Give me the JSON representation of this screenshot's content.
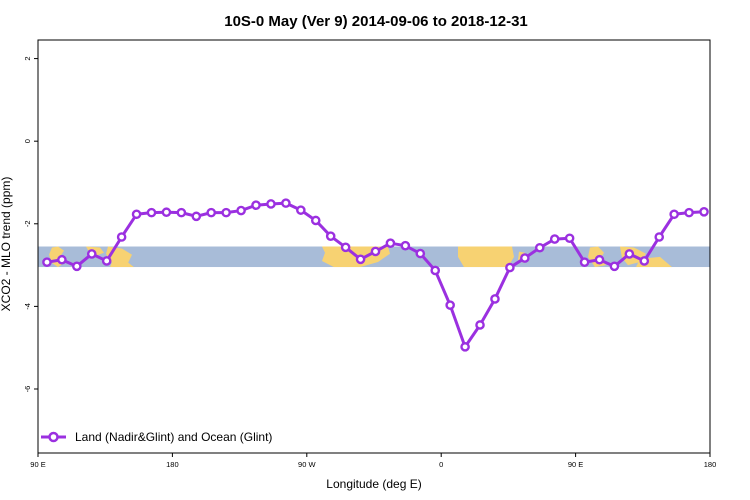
{
  "chart_data": {
    "type": "line",
    "title": "10S-0 May (Ver 9)   2014-09-06 to 2018-12-31",
    "xlabel": "Longitude (deg E)",
    "ylabel": "XCO2 - MLO trend (ppm)",
    "x_tick_labels": [
      "90 E",
      "180",
      "90 W",
      "0",
      "90 E",
      "180"
    ],
    "x_tick_values": [
      90,
      180,
      270,
      360,
      450,
      540
    ],
    "xlim": [
      90,
      540
    ],
    "y_tick_labels": [
      "2",
      "0",
      "-2",
      "-4",
      "-6"
    ],
    "y_tick_values": [
      2,
      0,
      -2,
      -4,
      -6
    ],
    "ylim": [
      -7.55,
      2.45
    ],
    "grid": false,
    "legend_position": "bottom-left",
    "map_band": {
      "ylim": [
        -3.05,
        -2.55
      ],
      "ocean_color": "#a8bcd8",
      "land_color": "#f7d272"
    },
    "series": [
      {
        "name": "Land (Nadir&Glint) and Ocean (Glint)",
        "color": "#9b30e0",
        "x": [
          96,
          106,
          116,
          126,
          136,
          146,
          156,
          166,
          176,
          186,
          196,
          206,
          216,
          226,
          236,
          246,
          256,
          266,
          276,
          286,
          296,
          306,
          316,
          326,
          336,
          346,
          356,
          366,
          376,
          386,
          396,
          406,
          416,
          426,
          436,
          446,
          456,
          466,
          476,
          486,
          496,
          506,
          516,
          526,
          536
        ],
        "y": [
          -2.93,
          -2.87,
          -3.03,
          -2.73,
          -2.9,
          -2.32,
          -1.77,
          -1.73,
          -1.72,
          -1.73,
          -1.82,
          -1.73,
          -1.73,
          -1.68,
          -1.55,
          -1.52,
          -1.5,
          -1.67,
          -1.92,
          -2.3,
          -2.57,
          -2.86,
          -2.67,
          -2.47,
          -2.53,
          -2.72,
          -3.13,
          -3.97,
          -4.98,
          -4.45,
          -3.82,
          -3.06,
          -2.83,
          -2.58,
          -2.37,
          -2.35,
          -2.93,
          -2.87,
          -3.03,
          -2.73,
          -2.9,
          -2.32,
          -1.77,
          -1.73,
          -1.71
        ]
      }
    ]
  }
}
